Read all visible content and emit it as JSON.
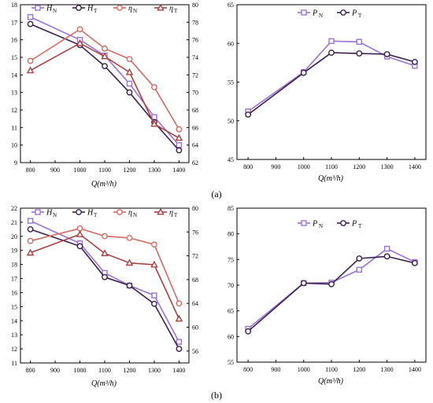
{
  "figure": {
    "panel_labels": [
      "(a)",
      "(b)"
    ],
    "colors": {
      "H_N": "#9b72d6",
      "H_T": "#3c1f4f",
      "eta_N": "#d46a62",
      "eta_T": "#a84040",
      "P_N": "#9b72d6",
      "P_T": "#3c1f4f",
      "axis": "#000000"
    }
  },
  "chart_data": [
    {
      "id": "a-left",
      "type": "line",
      "x": [
        800,
        900,
        1000,
        1100,
        1200,
        1300,
        1400
      ],
      "x_ticks": [
        800,
        900,
        1000,
        1100,
        1200,
        1300,
        1400
      ],
      "xlabel": "Q(m³/h)",
      "xlim": [
        760,
        1440
      ],
      "ylim_left": [
        9,
        18
      ],
      "yticks_left": [
        9,
        10,
        11,
        12,
        13,
        14,
        15,
        16,
        17,
        18
      ],
      "ylim_right": [
        62,
        80
      ],
      "yticks_right": [
        62,
        64,
        66,
        68,
        70,
        72,
        74,
        76,
        78,
        80
      ],
      "series": [
        {
          "key": "H_N",
          "name": "H",
          "sub": "N",
          "axis": "left",
          "marker": "square",
          "x": [
            800,
            1000,
            1100,
            1200,
            1300,
            1400
          ],
          "values": [
            17.3,
            16.0,
            15.1,
            13.5,
            11.6,
            10.0
          ]
        },
        {
          "key": "H_T",
          "name": "H",
          "sub": "T",
          "axis": "left",
          "marker": "circle",
          "x": [
            800,
            1000,
            1100,
            1200,
            1300,
            1400
          ],
          "values": [
            16.9,
            15.7,
            14.5,
            13.0,
            11.3,
            9.7
          ]
        },
        {
          "key": "eta_N",
          "name": "η",
          "sub": "N",
          "axis": "right",
          "marker": "circle",
          "x": [
            800,
            1000,
            1100,
            1200,
            1300,
            1400
          ],
          "values": [
            73.6,
            77.2,
            75.0,
            73.8,
            70.6,
            65.8
          ]
        },
        {
          "key": "eta_T",
          "name": "η",
          "sub": "T",
          "axis": "right",
          "marker": "triangle",
          "x": [
            800,
            1000,
            1100,
            1200,
            1300,
            1400
          ],
          "values": [
            72.5,
            75.6,
            74.1,
            72.3,
            66.4,
            64.8
          ]
        }
      ]
    },
    {
      "id": "a-right",
      "type": "line",
      "x": [
        800,
        900,
        1000,
        1100,
        1200,
        1300,
        1400
      ],
      "x_ticks": [
        800,
        900,
        1000,
        1100,
        1200,
        1300,
        1400
      ],
      "xlabel": "Q(m³/h)",
      "xlim": [
        760,
        1440
      ],
      "ylim": [
        45,
        65
      ],
      "yticks": [
        45,
        50,
        55,
        60,
        65
      ],
      "series": [
        {
          "key": "P_N",
          "name": "P",
          "sub": "N",
          "marker": "square",
          "x": [
            800,
            1000,
            1100,
            1200,
            1300,
            1400
          ],
          "values": [
            51.2,
            56.3,
            60.3,
            60.2,
            58.3,
            57.1
          ]
        },
        {
          "key": "P_T",
          "name": "P",
          "sub": "T",
          "marker": "circle",
          "x": [
            800,
            1000,
            1100,
            1200,
            1300,
            1400
          ],
          "values": [
            50.8,
            56.2,
            58.8,
            58.7,
            58.6,
            57.6
          ]
        }
      ]
    },
    {
      "id": "b-left",
      "type": "line",
      "x": [
        800,
        900,
        1000,
        1100,
        1200,
        1300,
        1400
      ],
      "x_ticks": [
        800,
        900,
        1000,
        1100,
        1200,
        1300,
        1400
      ],
      "xlabel": "Q(m³/h)",
      "xlim": [
        760,
        1440
      ],
      "ylim_left": [
        11,
        22
      ],
      "yticks_left": [
        11,
        12,
        13,
        14,
        15,
        16,
        17,
        18,
        19,
        20,
        21,
        22
      ],
      "ylim_right": [
        54,
        80
      ],
      "yticks_right": [
        56,
        60,
        64,
        68,
        72,
        76,
        80
      ],
      "series": [
        {
          "key": "H_N",
          "name": "H",
          "sub": "N",
          "axis": "left",
          "marker": "square",
          "x": [
            800,
            1000,
            1100,
            1200,
            1300,
            1400
          ],
          "values": [
            21.1,
            19.5,
            17.4,
            16.5,
            15.8,
            12.5
          ]
        },
        {
          "key": "H_T",
          "name": "H",
          "sub": "T",
          "axis": "left",
          "marker": "circle",
          "x": [
            800,
            1000,
            1100,
            1200,
            1300,
            1400
          ],
          "values": [
            20.5,
            19.3,
            17.1,
            16.5,
            15.2,
            12.0
          ]
        },
        {
          "key": "eta_N",
          "name": "η",
          "sub": "N",
          "axis": "right",
          "marker": "circle",
          "x": [
            800,
            1000,
            1100,
            1200,
            1300,
            1400
          ],
          "values": [
            74.5,
            76.6,
            75.3,
            75.0,
            73.9,
            64.0
          ]
        },
        {
          "key": "eta_T",
          "name": "η",
          "sub": "T",
          "axis": "right",
          "marker": "triangle",
          "x": [
            800,
            1000,
            1100,
            1200,
            1300,
            1400
          ],
          "values": [
            72.5,
            75.6,
            72.4,
            70.8,
            70.5,
            61.4
          ]
        }
      ]
    },
    {
      "id": "b-right",
      "type": "line",
      "x": [
        800,
        900,
        1000,
        1100,
        1200,
        1300,
        1400
      ],
      "x_ticks": [
        800,
        900,
        1000,
        1100,
        1200,
        1300,
        1400
      ],
      "xlabel": "Q(m³/h)",
      "xlim": [
        760,
        1440
      ],
      "ylim": [
        55,
        85
      ],
      "yticks": [
        55,
        60,
        65,
        70,
        75,
        80,
        85
      ],
      "series": [
        {
          "key": "P_N",
          "name": "P",
          "sub": "N",
          "marker": "square",
          "x": [
            800,
            1000,
            1100,
            1200,
            1300,
            1400
          ],
          "values": [
            61.5,
            70.4,
            70.5,
            73.0,
            77.1,
            74.5
          ]
        },
        {
          "key": "P_T",
          "name": "P",
          "sub": "T",
          "marker": "circle",
          "x": [
            800,
            1000,
            1100,
            1200,
            1300,
            1400
          ],
          "values": [
            61.0,
            70.4,
            70.2,
            75.2,
            75.6,
            74.3
          ]
        }
      ]
    }
  ]
}
